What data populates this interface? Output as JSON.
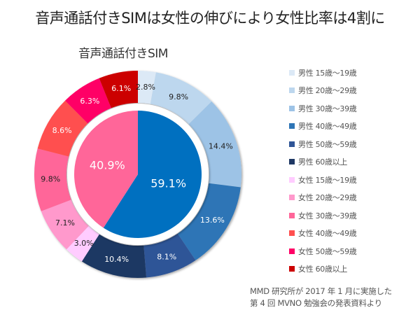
{
  "page_title": "音声通話付きSIMは女性の伸びにより女性比率は4割に",
  "source_note": {
    "line1": "MMD 研究所が 2017 年 1 月に実施した",
    "line2": "第 4 回 MVNO 勉強会の発表資料より"
  },
  "chart_data": {
    "type": "pie",
    "subtype": "nested-donut",
    "title": "音声通話付きSIM",
    "unit": "%",
    "legend_position": "right",
    "inner": {
      "categories": [
        "男性",
        "女性"
      ],
      "values": [
        59.1,
        40.9
      ],
      "labels": [
        "59.1%",
        "40.9%"
      ],
      "colors": [
        "#0070c0",
        "#ff6699"
      ],
      "label_colors": [
        "#ffffff",
        "#ffffff"
      ]
    },
    "outer": {
      "categories": [
        "男性 15歳〜19歳",
        "男性 20歳〜29歳",
        "男性 30歳〜39歳",
        "男性 40歳〜49歳",
        "男性 50歳〜59歳",
        "男性 60歳以上",
        "女性 15歳〜19歳",
        "女性 20歳〜29歳",
        "女性 30歳〜39歳",
        "女性 40歳〜49歳",
        "女性 50歳〜59歳",
        "女性 60歳以上"
      ],
      "values": [
        2.8,
        9.8,
        14.4,
        13.6,
        8.1,
        10.4,
        3.0,
        7.1,
        9.8,
        8.6,
        6.3,
        6.1
      ],
      "labels": [
        "2.8%",
        "9.8%",
        "14.4%",
        "13.6%",
        "8.1%",
        "10.4%",
        "3.0%",
        "7.1%",
        "9.8%",
        "8.6%",
        "6.3%",
        "6.1%"
      ],
      "colors": [
        "#dce9f6",
        "#bdd7ee",
        "#9dc3e6",
        "#2e75b6",
        "#2f5597",
        "#1f3864",
        "#ffccff",
        "#ff99cc",
        "#ff6699",
        "#ff5050",
        "#ff0066",
        "#cc0000"
      ],
      "label_colors": [
        "#222222",
        "#222222",
        "#222222",
        "#ffffff",
        "#ffffff",
        "#ffffff",
        "#222222",
        "#222222",
        "#222222",
        "#ffffff",
        "#ffffff",
        "#ffffff"
      ]
    },
    "legend": [
      {
        "label": "男性 15歳〜19歳",
        "color": "#dce9f6"
      },
      {
        "label": "男性 20歳〜29歳",
        "color": "#bdd7ee"
      },
      {
        "label": "男性 30歳〜39歳",
        "color": "#9dc3e6"
      },
      {
        "label": "男性 40歳〜49歳",
        "color": "#2e75b6"
      },
      {
        "label": "男性 50歳〜59歳",
        "color": "#2f5597"
      },
      {
        "label": "男性 60歳以上",
        "color": "#1f3864"
      },
      {
        "label": "女性 15歳〜19歳",
        "color": "#ffccff"
      },
      {
        "label": "女性 20歳〜29歳",
        "color": "#ff99cc"
      },
      {
        "label": "女性 30歳〜39歳",
        "color": "#ff6699"
      },
      {
        "label": "女性 40歳〜49歳",
        "color": "#ff5050"
      },
      {
        "label": "女性 50歳〜59歳",
        "color": "#ff0066"
      },
      {
        "label": "女性 60歳以上",
        "color": "#cc0000"
      }
    ]
  }
}
